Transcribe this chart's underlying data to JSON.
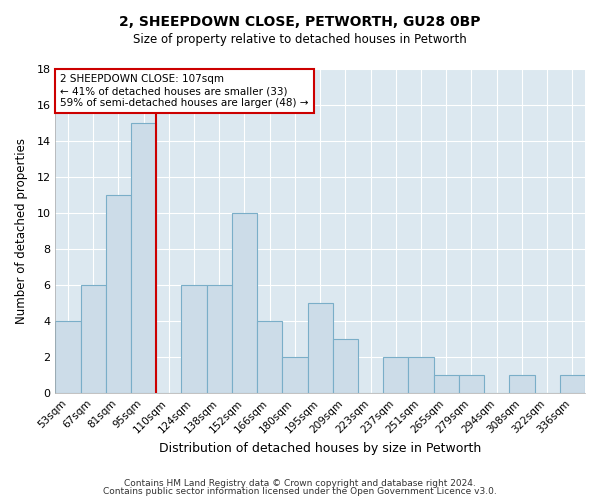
{
  "title": "2, SHEEPDOWN CLOSE, PETWORTH, GU28 0BP",
  "subtitle": "Size of property relative to detached houses in Petworth",
  "xlabel": "Distribution of detached houses by size in Petworth",
  "ylabel": "Number of detached properties",
  "bin_labels": [
    "53sqm",
    "67sqm",
    "81sqm",
    "95sqm",
    "110sqm",
    "124sqm",
    "138sqm",
    "152sqm",
    "166sqm",
    "180sqm",
    "195sqm",
    "209sqm",
    "223sqm",
    "237sqm",
    "251sqm",
    "265sqm",
    "279sqm",
    "294sqm",
    "308sqm",
    "322sqm",
    "336sqm"
  ],
  "bar_heights": [
    4,
    6,
    11,
    15,
    0,
    6,
    6,
    10,
    4,
    2,
    5,
    3,
    0,
    2,
    2,
    1,
    1,
    0,
    1,
    0,
    1
  ],
  "bar_color": "#ccdce8",
  "bar_edge_color": "#7aaec8",
  "vline_x_idx": 4,
  "vline_color": "#cc0000",
  "annotation_text": "2 SHEEPDOWN CLOSE: 107sqm\n← 41% of detached houses are smaller (33)\n59% of semi-detached houses are larger (48) →",
  "annotation_box_color": "#ffffff",
  "annotation_box_edge": "#cc0000",
  "ylim": [
    0,
    18
  ],
  "yticks": [
    0,
    2,
    4,
    6,
    8,
    10,
    12,
    14,
    16,
    18
  ],
  "plot_bg_color": "#dce8f0",
  "fig_bg_color": "#ffffff",
  "footer_line1": "Contains HM Land Registry data © Crown copyright and database right 2024.",
  "footer_line2": "Contains public sector information licensed under the Open Government Licence v3.0."
}
